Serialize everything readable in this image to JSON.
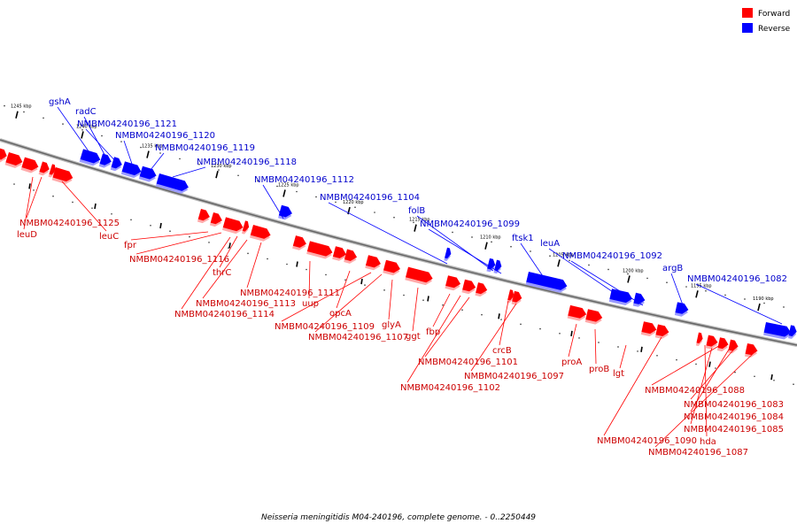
{
  "caption": "Neisseria meningitidis M04-240196, complete genome. - 0..2250449",
  "legend": [
    {
      "label": "Forward",
      "color": "#ff0000"
    },
    {
      "label": "Reverse",
      "color": "#0000ff"
    }
  ],
  "colors": {
    "forward": "#ff0000",
    "reverse": "#0000ff",
    "forward_label": "#cc0000",
    "reverse_label": "#0000cc",
    "backbone": "#888888"
  },
  "ticks": [
    "1190 kbp",
    "1195 kbp",
    "1200 kbp",
    "1205 kbp",
    "1210 kbp",
    "1215 kbp",
    "1220 kbp",
    "1225 kbp",
    "1230 kbp",
    "1235 kbp",
    "1240 kbp",
    "1245 kbp"
  ],
  "reverse_labels": [
    "gshA",
    "radC",
    "NMBM04240196_1121",
    "NMBM04240196_1120",
    "NMBM04240196_1119",
    "NMBM04240196_1118",
    "NMBM04240196_1112",
    "NMBM04240196_1104",
    "folB",
    "NMBM04240196_1099",
    "ftsk1",
    "leuA",
    "NMBM04240196_1092",
    "argB",
    "NMBM04240196_1082"
  ],
  "forward_labels": [
    "NMBM04240196_1125",
    "leuD",
    "leuC",
    "fpr",
    "NMBM04240196_1116",
    "thrC",
    "NMBM04240196_1111",
    "NMBM04240196_1113",
    "uup",
    "NMBM04240196_1114",
    "opcA",
    "NMBM04240196_1109",
    "glyA",
    "ggt",
    "NMBM04240196_1107",
    "fbp",
    "NMBM04240196_1101",
    "crcB",
    "NMBM04240196_1097",
    "NMBM04240196_1102",
    "proA",
    "proB",
    "lgt",
    "NMBM04240196_1088",
    "NMBM04240196_1083",
    "NMBM04240196_1084",
    "NMBM04240196_1085",
    "hda",
    "NMBM04240196_1090",
    "NMBM04240196_1087"
  ]
}
